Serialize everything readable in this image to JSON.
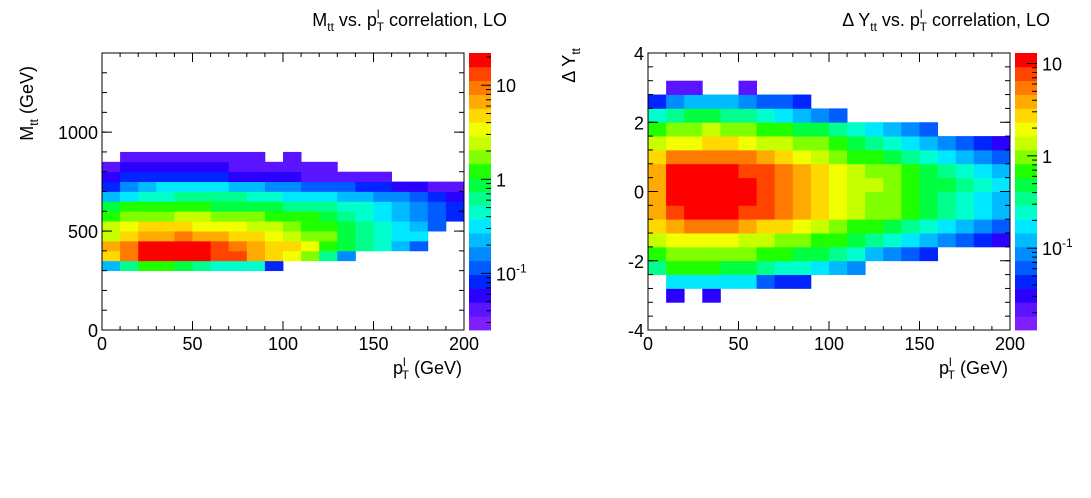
{
  "palette": [
    "#7f1fff",
    "#5a14ff",
    "#2a00ff",
    "#0025ff",
    "#005cff",
    "#008cff",
    "#00bbff",
    "#00e8ff",
    "#00ffcc",
    "#00ff8c",
    "#00ff40",
    "#20ff00",
    "#80ff00",
    "#c8ff00",
    "#f2ff00",
    "#ffd800",
    "#ffaa00",
    "#ff7a00",
    "#ff4400",
    "#ff0000"
  ],
  "chart_data": [
    {
      "type": "heatmap",
      "title": {
        "main": "M",
        "sub1": "tt",
        "mid": " vs. p",
        "sup": "l",
        "sub2": "T",
        "tail": " correlation, LO"
      },
      "xlabel": {
        "main": "p",
        "sup": "l",
        "sub": "T",
        "tail": " (GeV)"
      },
      "ylabel": {
        "main": "M",
        "sub": "tt",
        "tail": " (GeV)"
      },
      "xlim": [
        0,
        200
      ],
      "ylim": [
        0,
        1400
      ],
      "x_ticks": [
        "0",
        "50",
        "100",
        "150",
        "200"
      ],
      "y_ticks": [
        "0",
        "500",
        "1000"
      ],
      "bin_width_x": 10,
      "bin_width_y": 50,
      "colorbar": {
        "scale": "log",
        "range": [
          0.025,
          22
        ],
        "ticks": [
          {
            "base": "10",
            "exp": "-1",
            "value": 0.1
          },
          {
            "base": "1",
            "exp": "",
            "value": 1
          },
          {
            "base": "10",
            "exp": "",
            "value": 10
          }
        ]
      },
      "rows": [
        {
          "y0": 300,
          "x0": 0,
          "levels": [
            6,
            9,
            11,
            11,
            10,
            9,
            8,
            8,
            8,
            3
          ]
        },
        {
          "y0": 350,
          "x0": 0,
          "levels": [
            15,
            17,
            19,
            19,
            19,
            19,
            18,
            18,
            16,
            15,
            14,
            12,
            9,
            5
          ]
        },
        {
          "y0": 400,
          "x0": 0,
          "levels": [
            16,
            17,
            19,
            19,
            19,
            19,
            18,
            17,
            16,
            15,
            15,
            14,
            11,
            10,
            9,
            8,
            6,
            4
          ]
        },
        {
          "y0": 450,
          "x0": 0,
          "levels": [
            13,
            15,
            16,
            16,
            17,
            16,
            16,
            15,
            15,
            14,
            13,
            12,
            12,
            10,
            9,
            8,
            7,
            7
          ]
        },
        {
          "y0": 500,
          "x0": 0,
          "levels": [
            13,
            14,
            15,
            15,
            15,
            14,
            14,
            14,
            13,
            13,
            12,
            11,
            11,
            10,
            9,
            8,
            7,
            6,
            4
          ]
        },
        {
          "y0": 550,
          "x0": 0,
          "levels": [
            11,
            12,
            12,
            12,
            13,
            13,
            12,
            12,
            12,
            11,
            11,
            11,
            10,
            9,
            8,
            7,
            6,
            5,
            4,
            3
          ]
        },
        {
          "y0": 600,
          "x0": 0,
          "levels": [
            10,
            11,
            11,
            11,
            11,
            11,
            10,
            10,
            10,
            10,
            9,
            9,
            9,
            8,
            8,
            7,
            6,
            5,
            4,
            3
          ]
        },
        {
          "y0": 650,
          "x0": 0,
          "levels": [
            6,
            7,
            8,
            8,
            9,
            9,
            9,
            9,
            8,
            8,
            7,
            7,
            7,
            6,
            6,
            5,
            5,
            4,
            3,
            2
          ]
        },
        {
          "y0": 700,
          "x0": 0,
          "levels": [
            3,
            5,
            6,
            7,
            7,
            7,
            7,
            6,
            6,
            5,
            5,
            4,
            4,
            4,
            3,
            3,
            2,
            2,
            1,
            1
          ]
        },
        {
          "y0": 750,
          "x0": 0,
          "levels": [
            2,
            3,
            3,
            3,
            3,
            3,
            3,
            2,
            2,
            2,
            2,
            1,
            1,
            1,
            1,
            1
          ]
        },
        {
          "y0": 800,
          "x0": 0,
          "levels": [
            1,
            2,
            2,
            2,
            2,
            2,
            2,
            1,
            1,
            1,
            1,
            1,
            1
          ]
        },
        {
          "y0": 850,
          "x0": 10,
          "levels": [
            1,
            1,
            1,
            1,
            1,
            1,
            1,
            1,
            null,
            1
          ]
        }
      ]
    },
    {
      "type": "heatmap",
      "title": {
        "main": "Δ Y",
        "sub1": "tt",
        "mid": " vs. p",
        "sup": "l",
        "sub2": "T",
        "tail": " correlation, LO"
      },
      "xlabel": {
        "main": "p",
        "sup": "l",
        "sub": "T",
        "tail": " (GeV)"
      },
      "ylabel": {
        "main": "Δ Y",
        "sub": "tt",
        "tail": ""
      },
      "xlim": [
        0,
        200
      ],
      "ylim": [
        -4,
        4
      ],
      "x_ticks": [
        "0",
        "50",
        "100",
        "150",
        "200"
      ],
      "y_ticks": [
        "-4",
        "-2",
        "0",
        "2",
        "4"
      ],
      "bin_width_x": 10,
      "bin_width_y": 0.4,
      "colorbar": {
        "scale": "log",
        "range": [
          0.013,
          13
        ],
        "ticks": [
          {
            "base": "10",
            "exp": "-1",
            "value": 0.1
          },
          {
            "base": "1",
            "exp": "",
            "value": 1
          },
          {
            "base": "10",
            "exp": "",
            "value": 10
          }
        ]
      },
      "rows": [
        {
          "y0": -3.2,
          "x0": 10,
          "levels": [
            2,
            null,
            2
          ]
        },
        {
          "y0": -2.8,
          "x0": 10,
          "levels": [
            7,
            7,
            7,
            7,
            7,
            4,
            3,
            3
          ]
        },
        {
          "y0": -2.4,
          "x0": 0,
          "levels": [
            9,
            11,
            11,
            11,
            10,
            10,
            9,
            8,
            8,
            7,
            6,
            5
          ]
        },
        {
          "y0": -2.0,
          "x0": 0,
          "levels": [
            11,
            12,
            12,
            12,
            12,
            12,
            11,
            11,
            10,
            10,
            9,
            8,
            6,
            5,
            4,
            3
          ]
        },
        {
          "y0": -1.6,
          "x0": 0,
          "levels": [
            13,
            14,
            14,
            14,
            14,
            13,
            13,
            12,
            12,
            11,
            11,
            10,
            9,
            8,
            7,
            6,
            5,
            4,
            3,
            2
          ]
        },
        {
          "y0": -1.2,
          "x0": 0,
          "levels": [
            15,
            16,
            17,
            17,
            17,
            16,
            15,
            15,
            14,
            13,
            12,
            11,
            11,
            10,
            9,
            8,
            7,
            6,
            5,
            4
          ]
        },
        {
          "y0": -0.8,
          "x0": 0,
          "levels": [
            16,
            18,
            19,
            19,
            19,
            18,
            18,
            17,
            16,
            15,
            14,
            13,
            12,
            12,
            11,
            10,
            9,
            8,
            7,
            6
          ]
        },
        {
          "y0": -0.4,
          "x0": 0,
          "levels": [
            16,
            19,
            19,
            19,
            19,
            19,
            18,
            17,
            16,
            15,
            14,
            13,
            12,
            12,
            11,
            10,
            9,
            8,
            7,
            6
          ]
        },
        {
          "y0": 0.0,
          "x0": 0,
          "levels": [
            16,
            19,
            19,
            19,
            19,
            19,
            18,
            17,
            16,
            15,
            14,
            13,
            13,
            12,
            11,
            10,
            10,
            9,
            8,
            7
          ]
        },
        {
          "y0": 0.4,
          "x0": 0,
          "levels": [
            16,
            19,
            19,
            19,
            19,
            18,
            18,
            17,
            16,
            15,
            14,
            13,
            12,
            12,
            11,
            10,
            9,
            8,
            7,
            6
          ]
        },
        {
          "y0": 0.8,
          "x0": 0,
          "levels": [
            15,
            17,
            17,
            17,
            17,
            17,
            16,
            15,
            14,
            13,
            12,
            11,
            11,
            10,
            9,
            8,
            7,
            6,
            5,
            4
          ]
        },
        {
          "y0": 1.2,
          "x0": 0,
          "levels": [
            13,
            14,
            14,
            15,
            15,
            14,
            13,
            13,
            12,
            12,
            11,
            10,
            9,
            8,
            7,
            6,
            5,
            4,
            3,
            2
          ]
        },
        {
          "y0": 1.6,
          "x0": 0,
          "levels": [
            11,
            12,
            12,
            13,
            12,
            12,
            11,
            11,
            10,
            10,
            9,
            8,
            7,
            6,
            5,
            4
          ]
        },
        {
          "y0": 2.0,
          "x0": 0,
          "levels": [
            8,
            9,
            10,
            10,
            9,
            9,
            8,
            7,
            6,
            5,
            4
          ]
        },
        {
          "y0": 2.4,
          "x0": 0,
          "levels": [
            3,
            5,
            6,
            6,
            6,
            5,
            4,
            4,
            3
          ]
        },
        {
          "y0": 2.8,
          "x0": 10,
          "levels": [
            1,
            1,
            null,
            null,
            1
          ]
        }
      ]
    }
  ]
}
